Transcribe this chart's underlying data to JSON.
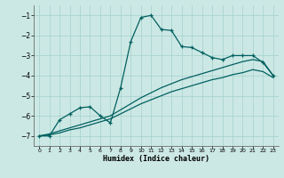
{
  "xlabel": "Humidex (Indice chaleur)",
  "background_color": "#cce8e4",
  "grid_color": "#aad4d0",
  "line_color": "#006060",
  "xlim": [
    -0.5,
    23.5
  ],
  "ylim": [
    -7.5,
    -0.5
  ],
  "x_ticks": [
    0,
    1,
    2,
    3,
    4,
    5,
    6,
    7,
    8,
    9,
    10,
    11,
    12,
    13,
    14,
    15,
    16,
    17,
    18,
    19,
    20,
    21,
    22,
    23
  ],
  "y_ticks": [
    -7,
    -6,
    -5,
    -4,
    -3,
    -2,
    -1
  ],
  "series1_x": [
    0,
    1,
    2,
    3,
    4,
    5,
    6,
    7,
    8,
    9,
    10,
    11,
    12,
    13,
    14,
    15,
    16,
    17,
    18,
    19,
    20,
    21,
    22,
    23
  ],
  "series1_y": [
    -7.0,
    -7.0,
    -6.2,
    -5.9,
    -5.6,
    -5.55,
    -6.0,
    -6.35,
    -4.6,
    -2.3,
    -1.1,
    -1.0,
    -1.7,
    -1.75,
    -2.55,
    -2.6,
    -2.85,
    -3.1,
    -3.2,
    -3.0,
    -3.0,
    -3.0,
    -3.35,
    -4.0
  ],
  "series2_x": [
    0,
    1,
    2,
    3,
    4,
    5,
    6,
    7,
    8,
    9,
    10,
    11,
    12,
    13,
    14,
    15,
    16,
    17,
    18,
    19,
    20,
    21,
    22,
    23
  ],
  "series2_y": [
    -7.0,
    -6.9,
    -6.75,
    -6.6,
    -6.45,
    -6.3,
    -6.15,
    -6.0,
    -5.7,
    -5.4,
    -5.1,
    -4.85,
    -4.6,
    -4.4,
    -4.2,
    -4.05,
    -3.9,
    -3.75,
    -3.6,
    -3.45,
    -3.3,
    -3.2,
    -3.3,
    -4.0
  ],
  "series3_x": [
    0,
    1,
    2,
    3,
    4,
    5,
    6,
    7,
    8,
    9,
    10,
    11,
    12,
    13,
    14,
    15,
    16,
    17,
    18,
    19,
    20,
    21,
    22,
    23
  ],
  "series3_y": [
    -7.0,
    -6.95,
    -6.85,
    -6.7,
    -6.6,
    -6.45,
    -6.3,
    -6.15,
    -5.9,
    -5.65,
    -5.4,
    -5.2,
    -5.0,
    -4.8,
    -4.65,
    -4.5,
    -4.35,
    -4.2,
    -4.1,
    -3.95,
    -3.85,
    -3.7,
    -3.8,
    -4.1
  ]
}
